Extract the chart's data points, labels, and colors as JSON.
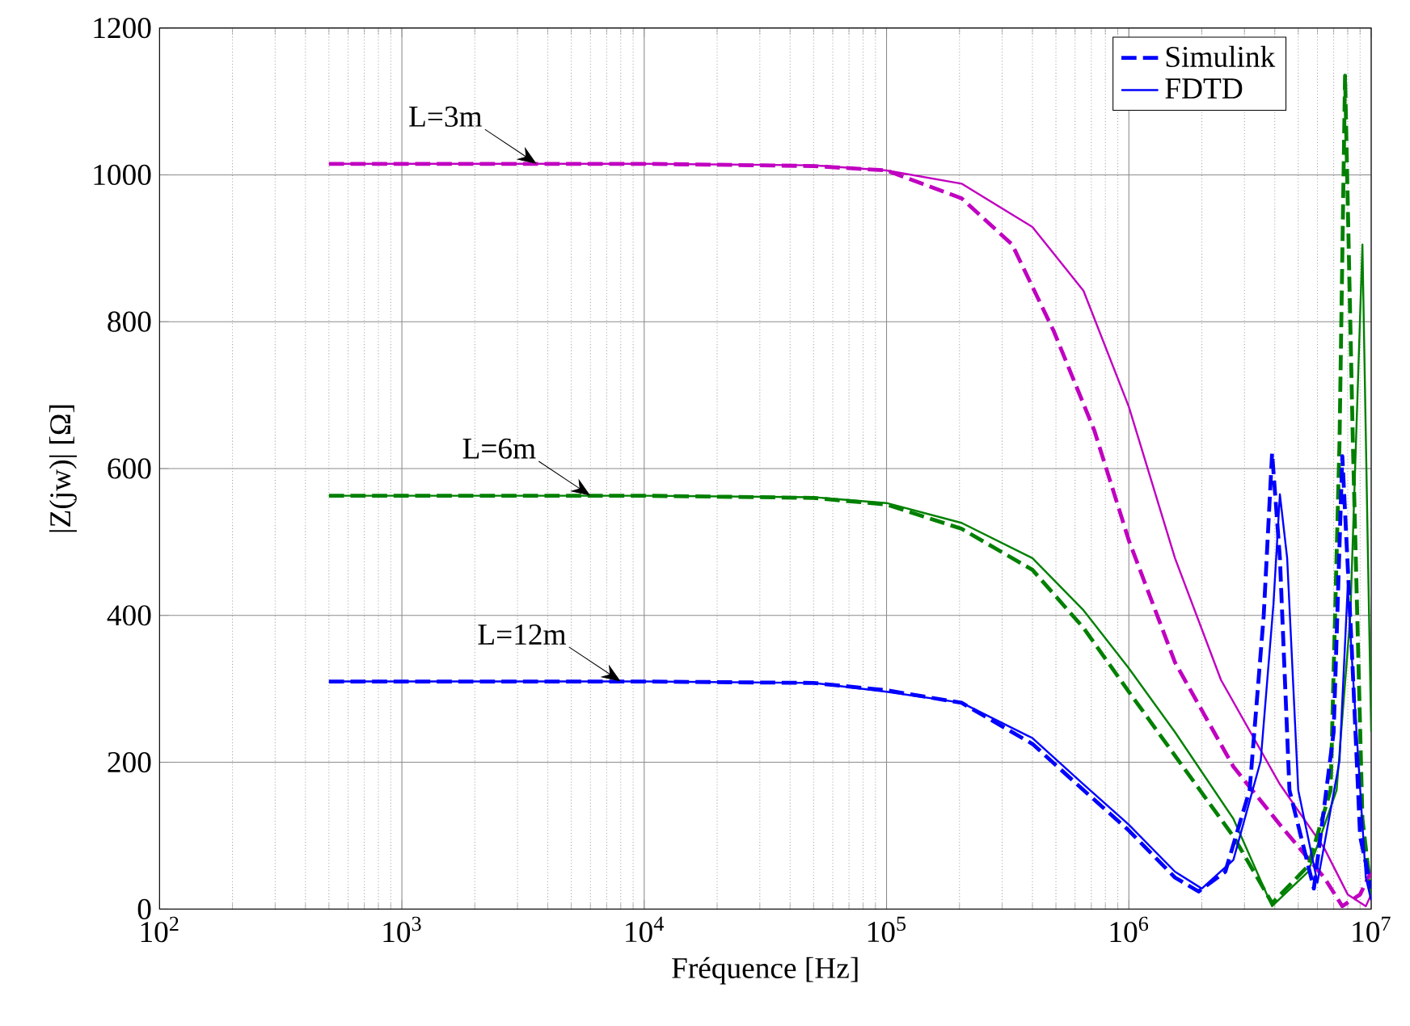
{
  "chart_data": {
    "type": "line",
    "xlabel": "Fréquence [Hz]",
    "ylabel": "|Z(jw)| [Ω]",
    "log": "x",
    "grid": true,
    "legend": "top right",
    "xlim": [
      100,
      10000000
    ],
    "xticks": [
      {
        "value": 100,
        "label": "10$^{2}$"
      },
      {
        "value": 1000,
        "label": "10$^{3}$"
      },
      {
        "value": 10000,
        "label": "10$^{4}$"
      },
      {
        "value": 100000,
        "label": "10$^{5}$"
      },
      {
        "value": 1000000,
        "label": "10$^{6}$"
      },
      {
        "value": 10000000,
        "label": "10$^{7}$"
      }
    ],
    "ylim": [
      0,
      1200
    ],
    "yticks": [
      0,
      200,
      400,
      600,
      800,
      1000,
      1200
    ],
    "annotations": [
      {
        "text": "L=3m",
        "x": 3600,
        "y": 1015
      },
      {
        "text": "L=6m",
        "x": 6000,
        "y": 563
      },
      {
        "text": "L=12m",
        "x": 8000,
        "y": 310
      }
    ],
    "series": [
      {
        "color": "#c000c0",
        "line_style": "dashed",
        "x": [
          500,
          10000,
          50000,
          100000,
          204000,
          330000,
          490000,
          720000,
          1000000,
          1550000,
          2700000,
          4200000,
          6400000,
          7600000,
          9000000,
          10000000
        ],
        "values": [
          1015,
          1015,
          1012,
          1006,
          968,
          905,
          787,
          652,
          502,
          336,
          194,
          115,
          43,
          4,
          20,
          51
        ]
      },
      {
        "color": "#c000c0",
        "line_style": "solid",
        "x": [
          500,
          10000,
          50000,
          100000,
          204000,
          400000,
          650000,
          1000000,
          1550000,
          2400000,
          4200000,
          6400000,
          8000000,
          9500000,
          10000000
        ],
        "values": [
          1015,
          1015,
          1013,
          1006,
          988,
          929,
          842,
          684,
          478,
          312,
          170,
          83,
          20,
          4,
          20
        ]
      },
      {
        "color": "#008000",
        "line_style": "dashed",
        "x": [
          500,
          10000,
          50000,
          100000,
          204000,
          400000,
          650000,
          1000000,
          1550000,
          2700000,
          3900000,
          5500000,
          6800000,
          7400000,
          7800000,
          8400000,
          9200000,
          10000000
        ],
        "values": [
          563,
          563,
          560,
          551,
          518,
          462,
          383,
          296,
          209,
          99,
          8,
          59,
          162,
          636,
          1135,
          636,
          123,
          20
        ]
      },
      {
        "color": "#008000",
        "line_style": "solid",
        "x": [
          500,
          10000,
          50000,
          100000,
          204000,
          400000,
          650000,
          1000000,
          1550000,
          2700000,
          3900000,
          5500000,
          7200000,
          8200000,
          9200000,
          9700000,
          10000000
        ],
        "values": [
          563,
          563,
          561,
          553,
          526,
          478,
          407,
          328,
          241,
          123,
          4,
          51,
          162,
          399,
          905,
          478,
          241
        ]
      },
      {
        "name": "Simulink",
        "color": "#0000ff",
        "line_style": "dashed",
        "x": [
          500,
          10000,
          50000,
          100000,
          204000,
          400000,
          650000,
          1000000,
          1550000,
          1940000,
          2500000,
          3150000,
          3600000,
          3900000,
          4200000,
          4600000,
          5800000,
          7000000,
          7600000,
          8300000,
          9000000,
          10000000
        ],
        "values": [
          310,
          310,
          308,
          298,
          281,
          225,
          162,
          107,
          43,
          24,
          51,
          162,
          399,
          621,
          478,
          162,
          28,
          241,
          617,
          360,
          99,
          28
        ]
      },
      {
        "name": "FDTD",
        "color": "#0000ff",
        "line_style": "solid",
        "x": [
          500,
          10000,
          50000,
          100000,
          204000,
          400000,
          650000,
          1000000,
          1550000,
          2000000,
          2700000,
          3500000,
          3950000,
          4200000,
          4500000,
          5000000,
          6000000,
          7400000,
          8000000,
          8400000,
          9500000,
          10000000
        ],
        "values": [
          310,
          310,
          308,
          296,
          281,
          233,
          170,
          115,
          51,
          28,
          67,
          202,
          415,
          565,
          478,
          162,
          36,
          202,
          439,
          320,
          43,
          12
        ]
      }
    ]
  }
}
